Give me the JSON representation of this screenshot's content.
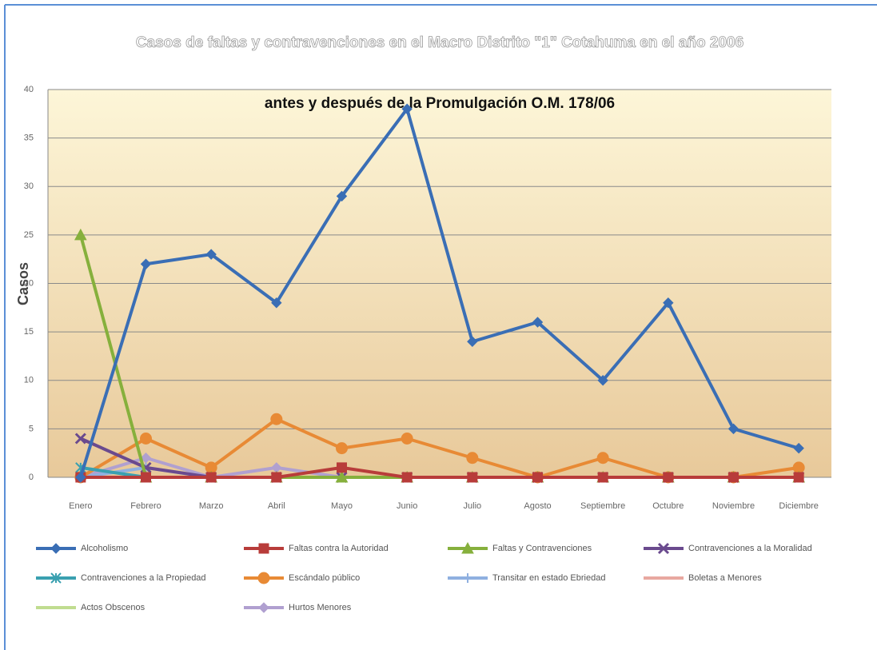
{
  "chart_data": {
    "type": "line",
    "title": "Casos de faltas y contravenciones en el Macro Distrito \"1\" Cotahuma en el año 2006",
    "subtitle": "antes y después de la Promulgación O.M. 178/06",
    "y_label": "Casos",
    "categories": [
      "Enero",
      "Febrero",
      "Marzo",
      "Abril",
      "Mayo",
      "Junio",
      "Julio",
      "Agosto",
      "Septiembre",
      "Octubre",
      "Noviembre",
      "Diciembre"
    ],
    "ylim": [
      0,
      40
    ],
    "yticks": [
      0,
      5,
      10,
      15,
      20,
      25,
      30,
      35,
      40
    ],
    "grid": true,
    "series": [
      {
        "name": "Alcoholismo",
        "color": "#3a6eb5",
        "marker": "diamond",
        "values": [
          0,
          22,
          23,
          18,
          29,
          38,
          14,
          16,
          10,
          18,
          5,
          3
        ]
      },
      {
        "name": "Faltas contra la Autoridad",
        "color": "#b83c3a",
        "marker": "square",
        "values": [
          0,
          0,
          0,
          0,
          1,
          0,
          0,
          0,
          0,
          0,
          0,
          0
        ]
      },
      {
        "name": "Faltas y Contravenciones",
        "color": "#86b03c",
        "marker": "triangle",
        "values": [
          25,
          0,
          0,
          0,
          0,
          0,
          0,
          0,
          0,
          0,
          0,
          0
        ]
      },
      {
        "name": "Contravenciones a la Moralidad",
        "color": "#6a4a8e",
        "marker": "x",
        "values": [
          4,
          1,
          0,
          0,
          0,
          0,
          0,
          0,
          0,
          0,
          0,
          0
        ]
      },
      {
        "name": "Contravenciones a la Propiedad",
        "color": "#3aa0b0",
        "marker": "star",
        "values": [
          1,
          0,
          0,
          0,
          0,
          0,
          0,
          0,
          0,
          0,
          0,
          0
        ]
      },
      {
        "name": "Escándalo público",
        "color": "#e88a35",
        "marker": "circle",
        "values": [
          0,
          4,
          1,
          6,
          3,
          4,
          2,
          0,
          2,
          0,
          0,
          1
        ]
      },
      {
        "name": "Transitar en estado Ebriedad",
        "color": "#8fb0e0",
        "marker": "plus",
        "values": [
          0,
          1,
          0,
          0,
          0,
          0,
          0,
          0,
          0,
          0,
          0,
          0
        ]
      },
      {
        "name": "Boletas a Menores",
        "color": "#e8a8a0",
        "marker": "none",
        "values": [
          0,
          0,
          0,
          0,
          0,
          0,
          0,
          0,
          0,
          0,
          0,
          0
        ]
      },
      {
        "name": "Actos Obscenos",
        "color": "#c0dc90",
        "marker": "none",
        "values": [
          0,
          0,
          0,
          0,
          0,
          0,
          0,
          0,
          0,
          0,
          0,
          0
        ]
      },
      {
        "name": "Hurtos Menores",
        "color": "#b0a0d0",
        "marker": "diamond",
        "values": [
          0,
          2,
          0,
          1,
          0,
          0,
          0,
          0,
          0,
          0,
          0,
          0
        ]
      }
    ]
  }
}
